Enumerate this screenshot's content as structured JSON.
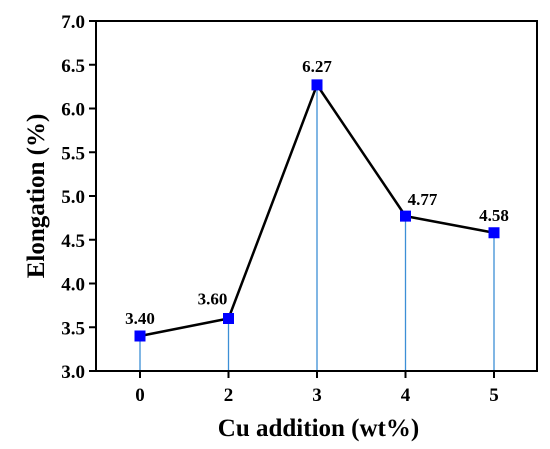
{
  "chart_data": {
    "type": "line",
    "x_categories": [
      "0",
      "2",
      "3",
      "4",
      "5"
    ],
    "values": [
      3.4,
      3.6,
      6.27,
      4.77,
      4.58
    ],
    "data_labels": [
      "3.40",
      "3.60",
      "6.27",
      "4.77",
      "4.58"
    ],
    "xlabel": "Cu addition (wt%)",
    "ylabel": "Elongation (%)",
    "ylim": [
      3.0,
      7.0
    ],
    "y_ticks": [
      "3.0",
      "3.5",
      "4.0",
      "4.5",
      "5.0",
      "5.5",
      "6.0",
      "6.5",
      "7.0"
    ],
    "y_tick_values": [
      3.0,
      3.5,
      4.0,
      4.5,
      5.0,
      5.5,
      6.0,
      6.5,
      7.0
    ],
    "grid": false,
    "drop_lines": true,
    "colors": {
      "line": "#000000",
      "marker": "#0000ff",
      "drop_line": "#3c8fd6"
    }
  }
}
